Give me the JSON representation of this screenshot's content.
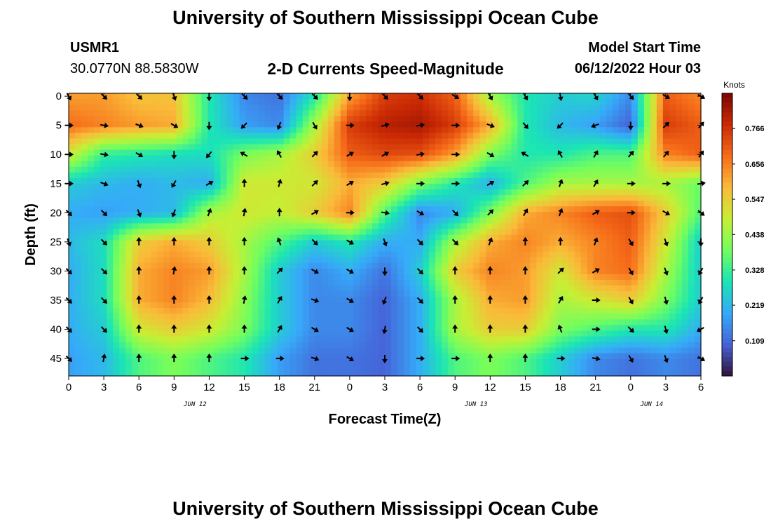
{
  "header": {
    "title": "University of Southern Mississippi Ocean Cube",
    "station_id": "USMR1",
    "station_coords": "30.0770N  88.5830W",
    "plot_title": "2-D Currents Speed-Magnitude",
    "model_start_label": "Model Start Time",
    "model_start_value": "06/12/2022 Hour 03"
  },
  "footer": {
    "title": "University of Southern Mississippi Ocean Cube"
  },
  "chart_data": {
    "type": "heatmap",
    "xlabel": "Forecast Time(Z)",
    "ylabel": "Depth (ft)",
    "x_tick_labels": [
      "0",
      "3",
      "6",
      "9",
      "12",
      "15",
      "18",
      "21",
      "0",
      "3",
      "6",
      "9",
      "12",
      "15",
      "18",
      "21",
      "0",
      "3",
      "6"
    ],
    "date_labels": [
      {
        "tick_index": 3.6,
        "label": "JUN 12"
      },
      {
        "tick_index": 11.6,
        "label": "JUN 13"
      },
      {
        "tick_index": 16.6,
        "label": "JUN 14"
      }
    ],
    "x_range_hours": [
      0,
      54
    ],
    "y_ticks": [
      0,
      5,
      10,
      15,
      20,
      25,
      30,
      35,
      40,
      45
    ],
    "y_range_ft": [
      -0.5,
      48
    ],
    "colorbar": {
      "unit": "Knots",
      "tick_labels": [
        "0.766",
        "0.656",
        "0.547",
        "0.438",
        "0.328",
        "0.219",
        "0.109"
      ],
      "tick_values": [
        0.766,
        0.656,
        0.547,
        0.438,
        0.328,
        0.219,
        0.109
      ],
      "range": [
        0,
        0.875
      ]
    },
    "speed_grid_knots": {
      "x_hours": [
        0,
        3,
        6,
        9,
        12,
        15,
        18,
        21,
        24,
        27,
        30,
        33,
        36,
        39,
        42,
        45,
        48,
        51,
        54
      ],
      "depth_ft": [
        0,
        5,
        10,
        15,
        20,
        25,
        30,
        35,
        40,
        45
      ],
      "values": [
        [
          0.62,
          0.62,
          0.57,
          0.57,
          0.3,
          0.15,
          0.12,
          0.3,
          0.62,
          0.75,
          0.77,
          0.7,
          0.45,
          0.3,
          0.25,
          0.26,
          0.15,
          0.7,
          0.65
        ],
        [
          0.68,
          0.65,
          0.62,
          0.6,
          0.3,
          0.18,
          0.15,
          0.45,
          0.75,
          0.8,
          0.82,
          0.75,
          0.6,
          0.3,
          0.22,
          0.18,
          0.1,
          0.75,
          0.7
        ],
        [
          0.5,
          0.32,
          0.3,
          0.28,
          0.28,
          0.4,
          0.45,
          0.55,
          0.7,
          0.73,
          0.72,
          0.62,
          0.4,
          0.3,
          0.3,
          0.35,
          0.35,
          0.65,
          0.7
        ],
        [
          0.25,
          0.22,
          0.2,
          0.22,
          0.2,
          0.5,
          0.5,
          0.5,
          0.6,
          0.55,
          0.4,
          0.3,
          0.2,
          0.35,
          0.45,
          0.45,
          0.45,
          0.45,
          0.38
        ],
        [
          0.2,
          0.18,
          0.2,
          0.22,
          0.45,
          0.5,
          0.48,
          0.55,
          0.65,
          0.35,
          0.15,
          0.2,
          0.4,
          0.6,
          0.65,
          0.7,
          0.72,
          0.55,
          0.35
        ],
        [
          0.22,
          0.28,
          0.55,
          0.6,
          0.55,
          0.45,
          0.35,
          0.25,
          0.3,
          0.2,
          0.2,
          0.45,
          0.6,
          0.65,
          0.6,
          0.65,
          0.7,
          0.5,
          0.25
        ],
        [
          0.2,
          0.28,
          0.6,
          0.65,
          0.62,
          0.45,
          0.25,
          0.15,
          0.2,
          0.12,
          0.25,
          0.55,
          0.65,
          0.62,
          0.5,
          0.65,
          0.68,
          0.45,
          0.25
        ],
        [
          0.2,
          0.28,
          0.6,
          0.65,
          0.58,
          0.42,
          0.25,
          0.15,
          0.15,
          0.1,
          0.2,
          0.45,
          0.6,
          0.62,
          0.45,
          0.5,
          0.55,
          0.4,
          0.25
        ],
        [
          0.2,
          0.25,
          0.5,
          0.55,
          0.5,
          0.4,
          0.25,
          0.15,
          0.15,
          0.1,
          0.2,
          0.45,
          0.55,
          0.55,
          0.4,
          0.35,
          0.3,
          0.3,
          0.2
        ],
        [
          0.18,
          0.22,
          0.35,
          0.4,
          0.35,
          0.3,
          0.18,
          0.12,
          0.12,
          0.1,
          0.2,
          0.35,
          0.4,
          0.35,
          0.25,
          0.15,
          0.12,
          0.15,
          0.12
        ]
      ]
    },
    "direction_grid_deg": {
      "values": [
        [
          150,
          135,
          135,
          160,
          180,
          135,
          135,
          135,
          180,
          135,
          135,
          120,
          150,
          150,
          170,
          150,
          140,
          120,
          120
        ],
        [
          90,
          100,
          110,
          120,
          180,
          225,
          200,
          150,
          90,
          75,
          80,
          90,
          110,
          140,
          225,
          250,
          180,
          45,
          40
        ],
        [
          90,
          100,
          120,
          180,
          220,
          300,
          330,
          45,
          60,
          60,
          80,
          90,
          120,
          300,
          330,
          30,
          40,
          40,
          35
        ],
        [
          90,
          110,
          160,
          210,
          60,
          0,
          15,
          45,
          60,
          75,
          90,
          90,
          60,
          45,
          20,
          30,
          90,
          90,
          80
        ],
        [
          135,
          135,
          160,
          200,
          20,
          10,
          0,
          60,
          90,
          100,
          120,
          135,
          45,
          30,
          20,
          60,
          90,
          120,
          130
        ],
        [
          160,
          135,
          0,
          0,
          0,
          0,
          340,
          135,
          120,
          160,
          135,
          135,
          20,
          0,
          0,
          20,
          150,
          160,
          180
        ],
        [
          135,
          135,
          0,
          10,
          0,
          0,
          45,
          120,
          120,
          180,
          135,
          0,
          0,
          0,
          45,
          60,
          150,
          160,
          210
        ],
        [
          135,
          135,
          0,
          0,
          0,
          10,
          30,
          110,
          120,
          200,
          135,
          0,
          0,
          0,
          30,
          90,
          150,
          165,
          210
        ],
        [
          135,
          135,
          0,
          0,
          0,
          0,
          30,
          120,
          120,
          190,
          135,
          0,
          0,
          0,
          340,
          90,
          135,
          165,
          240
        ],
        [
          135,
          10,
          0,
          0,
          0,
          90,
          90,
          110,
          120,
          180,
          90,
          90,
          0,
          0,
          90,
          100,
          150,
          160,
          120
        ]
      ]
    }
  },
  "colors": {
    "colormap": [
      "#30123b",
      "#4662d7",
      "#36aaf9",
      "#1ae4b6",
      "#72fe5e",
      "#c7ef34",
      "#faba39",
      "#f66b19",
      "#ca2a04",
      "#7a0403"
    ],
    "arrow": "#000000",
    "axis": "#000000"
  }
}
